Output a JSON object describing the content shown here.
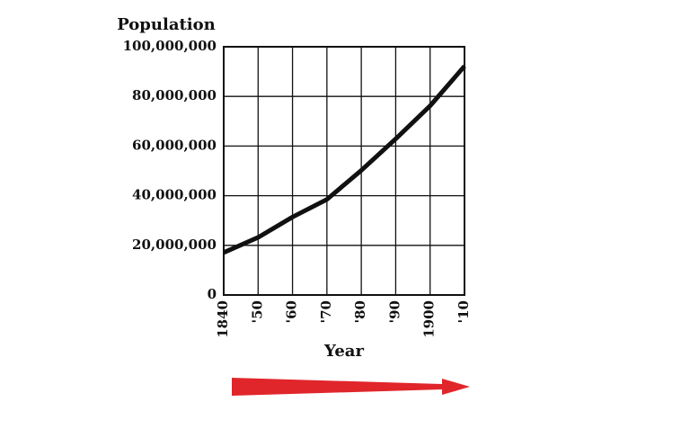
{
  "chart_data": {
    "type": "line",
    "ylabel": "Population",
    "xlabel": "Year",
    "x": [
      1840,
      1850,
      1860,
      1870,
      1880,
      1890,
      1900,
      1910
    ],
    "values": [
      17100000,
      23200000,
      31400000,
      38500000,
      50200000,
      62900000,
      76200000,
      92200000
    ],
    "color": "#111111",
    "xlim": [
      1840,
      1910
    ],
    "xticks": [
      {
        "value": 1840,
        "label": "1840"
      },
      {
        "value": 1850,
        "label": "'50"
      },
      {
        "value": 1860,
        "label": "'60"
      },
      {
        "value": 1870,
        "label": "'70"
      },
      {
        "value": 1880,
        "label": "'80"
      },
      {
        "value": 1890,
        "label": "'90"
      },
      {
        "value": 1900,
        "label": "1900"
      },
      {
        "value": 1910,
        "label": "'10"
      }
    ],
    "ylim": [
      0,
      100000000
    ],
    "yticks": [
      0,
      {
        "value": 20000000,
        "label": "20,000,000"
      },
      {
        "value": 40000000,
        "label": "40,000,000"
      },
      {
        "value": 60000000,
        "label": "60,000,000"
      },
      {
        "value": 80000000,
        "label": "80,000,000"
      },
      {
        "value": 100000000,
        "label": "100,000,000"
      }
    ],
    "grid": true
  }
}
